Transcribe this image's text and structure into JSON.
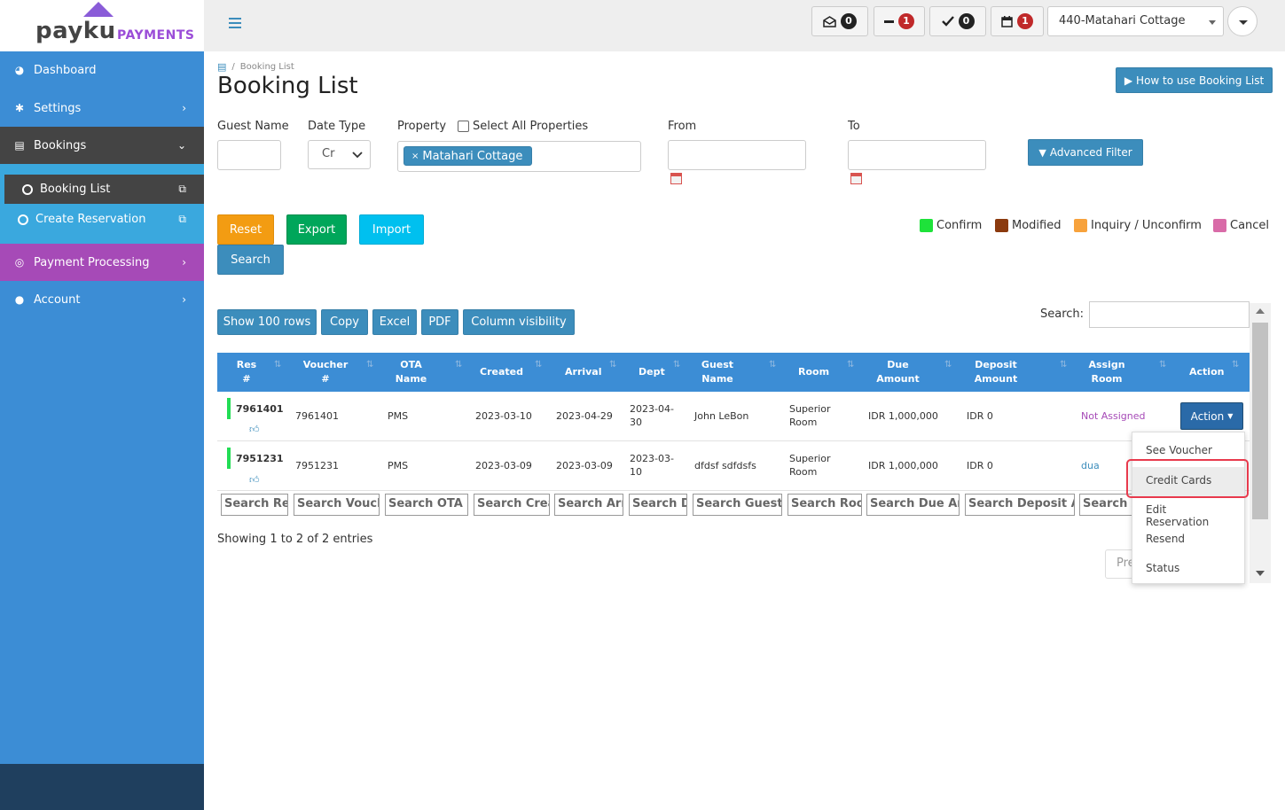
{
  "brand": {
    "name": "payku",
    "sub": "PAYMENTS"
  },
  "topbar": {
    "mail_count": "0",
    "minus_count": "1",
    "check_count": "0",
    "calendar_count": "1",
    "property_selected": "440-Matahari Cottage"
  },
  "sidebar": {
    "items": [
      {
        "label": "Dashboard"
      },
      {
        "label": "Settings"
      },
      {
        "label": "Bookings"
      },
      {
        "label": "Booking List"
      },
      {
        "label": "Create Reservation"
      },
      {
        "label": "Payment Processing"
      },
      {
        "label": "Account"
      }
    ]
  },
  "breadcrumb": {
    "current": "Booking List"
  },
  "page": {
    "title": "Booking List",
    "help_button": "How to use Booking List"
  },
  "filters": {
    "guest_name_label": "Guest Name",
    "date_type_label": "Date Type",
    "date_type_value": "Cr",
    "property_label": "Property",
    "select_all_label": "Select All Properties",
    "property_tag": "Matahari Cottage",
    "from_label": "From",
    "to_label": "To",
    "advanced_filter": "Advanced Filter"
  },
  "actions": {
    "reset": "Reset",
    "export": "Export",
    "import": "Import",
    "search": "Search"
  },
  "legend": [
    {
      "label": "Confirm",
      "color": "#1ee23a"
    },
    {
      "label": "Modified",
      "color": "#8b3a0e"
    },
    {
      "label": "Inquiry / Unconfirm",
      "color": "#f7a23c"
    },
    {
      "label": "Cancel",
      "color": "#d96ba8"
    }
  ],
  "table_tools": {
    "show_rows": "Show 100 rows",
    "copy": "Copy",
    "excel": "Excel",
    "pdf": "PDF",
    "column_visibility": "Column visibility",
    "search_label": "Search:"
  },
  "table": {
    "headers": [
      "Res #",
      "Voucher #",
      "OTA Name",
      "Created",
      "Arrival",
      "Dept",
      "Guest Name",
      "Room",
      "Due Amount",
      "Deposit Amount",
      "Assign Room",
      "Action"
    ],
    "rows": [
      {
        "res": "7961401",
        "voucher": "7961401",
        "ota": "PMS",
        "created": "2023-03-10",
        "arrival": "2023-04-29",
        "dept": "2023-04-30",
        "guest": "John LeBon",
        "room": "Superior Room",
        "due": "IDR 1,000,000",
        "deposit": "IDR 0",
        "assign": "Not Assigned"
      },
      {
        "res": "7951231",
        "voucher": "7951231",
        "ota": "PMS",
        "created": "2023-03-09",
        "arrival": "2023-03-09",
        "dept": "2023-03-10",
        "guest": "dfdsf sdfdsfs",
        "room": "Superior Room",
        "due": "IDR 1,000,000",
        "deposit": "IDR 0",
        "assign": "dua"
      }
    ],
    "column_search": [
      "Search  Re",
      "Search Vouch",
      "Search OTA N",
      "Search Crea",
      "Search Arr",
      "Search D",
      "Search Guest N",
      "Search Roo",
      "Search Due Am",
      "Search Deposit Am",
      "Search A"
    ],
    "action_button": "Action",
    "info": "Showing 1 to 2 of 2 entries",
    "prev": "Pre"
  },
  "action_menu": [
    "See Voucher",
    "Credit Cards",
    "Edit Reservation",
    "Resend",
    "Status"
  ]
}
